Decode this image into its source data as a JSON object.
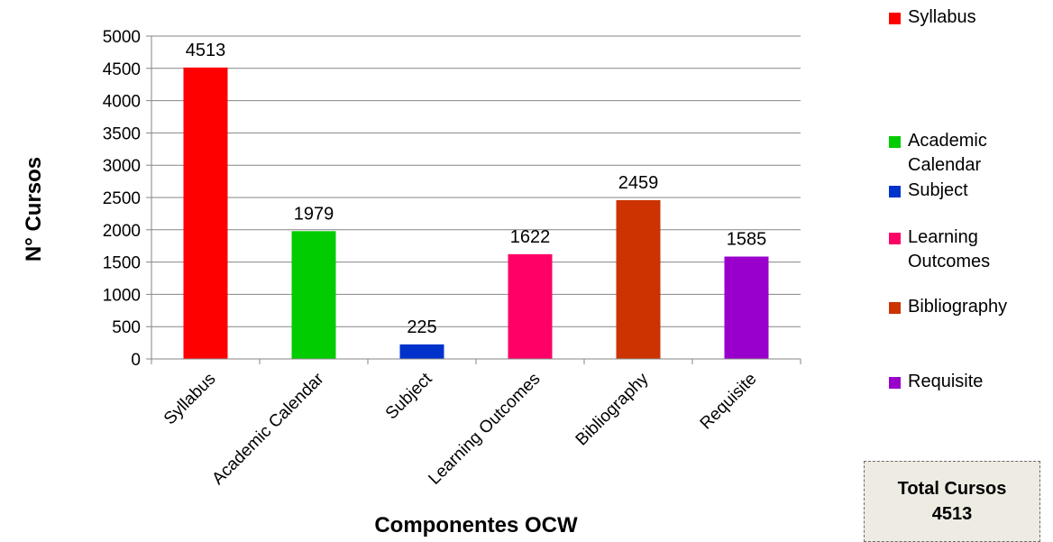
{
  "chart_data": {
    "type": "bar",
    "categories": [
      "Syllabus",
      "Academic Calendar",
      "Subject",
      "Learning Outcomes",
      "Bibliography",
      "Requisite"
    ],
    "values": [
      4513,
      1979,
      225,
      1622,
      2459,
      1585
    ],
    "colors": [
      "#ff0000",
      "#00cc00",
      "#0033cc",
      "#ff0066",
      "#cc3300",
      "#9900cc"
    ],
    "data_labels": [
      "4513",
      "1979",
      "225",
      "1622",
      "2459",
      "1585"
    ],
    "xlabel": "Componentes OCW",
    "ylabel": "N° Cursos",
    "ylim": [
      0,
      5000
    ],
    "yticks": [
      0,
      500,
      1000,
      1500,
      2000,
      2500,
      3000,
      3500,
      4000,
      4500,
      5000
    ],
    "grid": true,
    "legend_position": "right",
    "legend": [
      {
        "label": "Syllabus",
        "color": "#ff0000"
      },
      {
        "label": "Academic Calendar",
        "color": "#00cc00"
      },
      {
        "label": "Subject",
        "color": "#0033cc"
      },
      {
        "label": "Learning Outcomes",
        "color": "#ff0066"
      },
      {
        "label": "Bibliography",
        "color": "#cc3300"
      },
      {
        "label": "Requisite",
        "color": "#9900cc"
      }
    ]
  },
  "total_box": {
    "title": "Total Cursos",
    "value": "4513"
  }
}
